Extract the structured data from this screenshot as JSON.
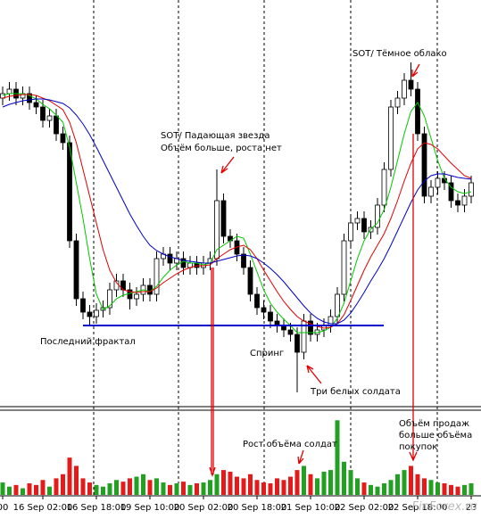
{
  "chart_data": {
    "type": "candlestick",
    "categories": [
      "00",
      null,
      null,
      null,
      null,
      null,
      "16 Sep 02:00",
      null,
      null,
      null,
      null,
      null,
      null,
      null,
      "16 Sep 18:00",
      null,
      null,
      null,
      null,
      null,
      null,
      null,
      "19 Sep 10:00",
      null,
      null,
      null,
      null,
      null,
      null,
      null,
      "20 Sep 02:00",
      null,
      null,
      null,
      null,
      null,
      null,
      null,
      "20 Sep 18:00",
      null,
      null,
      null,
      null,
      null,
      null,
      null,
      "21 Sep 10:00",
      null,
      null,
      null,
      null,
      null,
      null,
      null,
      "22 Sep 02:00",
      null,
      null,
      null,
      null,
      null,
      null,
      null,
      "22 Sep 18:00",
      null,
      null,
      null,
      null,
      null,
      null,
      null,
      "23"
    ],
    "open": [
      345,
      350,
      355,
      345,
      350,
      340,
      335,
      320,
      325,
      305,
      295,
      185,
      120,
      105,
      100,
      107,
      110,
      130,
      140,
      130,
      120,
      125,
      135,
      125,
      165,
      170,
      160,
      165,
      155,
      160,
      155,
      160,
      165,
      230,
      190,
      185,
      170,
      155,
      125,
      110,
      105,
      95,
      90,
      85,
      80,
      60,
      95,
      80,
      85,
      90,
      100,
      125,
      185,
      205,
      210,
      195,
      200,
      225,
      265,
      335,
      345,
      365,
      355,
      305,
      235,
      245,
      255,
      250,
      230,
      225,
      235
    ],
    "high": [
      358,
      363,
      363,
      358,
      358,
      348,
      343,
      333,
      333,
      313,
      303,
      193,
      128,
      113,
      115,
      118,
      138,
      148,
      148,
      138,
      133,
      143,
      143,
      173,
      178,
      178,
      173,
      173,
      168,
      168,
      168,
      173,
      265,
      238,
      198,
      193,
      178,
      163,
      133,
      118,
      113,
      103,
      98,
      93,
      88,
      103,
      103,
      93,
      98,
      108,
      133,
      193,
      213,
      218,
      218,
      208,
      233,
      273,
      343,
      353,
      373,
      385,
      363,
      313,
      253,
      263,
      263,
      258,
      238,
      243,
      258
    ],
    "low": [
      337,
      342,
      337,
      337,
      332,
      327,
      312,
      312,
      297,
      287,
      177,
      112,
      97,
      90,
      92,
      99,
      102,
      122,
      122,
      108,
      112,
      117,
      117,
      117,
      157,
      152,
      152,
      147,
      147,
      147,
      147,
      152,
      157,
      182,
      177,
      162,
      147,
      117,
      102,
      97,
      87,
      82,
      77,
      72,
      15,
      52,
      72,
      72,
      77,
      82,
      92,
      117,
      177,
      197,
      187,
      187,
      192,
      217,
      257,
      327,
      337,
      347,
      297,
      227,
      227,
      237,
      242,
      222,
      217,
      217,
      227
    ],
    "close": [
      350,
      355,
      345,
      350,
      340,
      335,
      320,
      325,
      305,
      295,
      185,
      120,
      105,
      100,
      107,
      110,
      130,
      140,
      130,
      120,
      125,
      135,
      125,
      165,
      170,
      160,
      165,
      155,
      160,
      155,
      160,
      165,
      230,
      190,
      185,
      170,
      155,
      125,
      110,
      105,
      95,
      90,
      85,
      80,
      60,
      95,
      80,
      85,
      90,
      100,
      125,
      185,
      205,
      210,
      195,
      200,
      225,
      265,
      335,
      345,
      365,
      355,
      305,
      235,
      245,
      255,
      250,
      230,
      225,
      235,
      250
    ],
    "ylim": [
      0,
      450
    ],
    "up_color": "#ffffff",
    "down_color": "#000000",
    "moving_averages": [
      {
        "color": "#00c800",
        "values": [
          348,
          350,
          350,
          350,
          348,
          344,
          338,
          333,
          326,
          318,
          290,
          250,
          210,
          165,
          125,
          108,
          112,
          120,
          124,
          126,
          128,
          130,
          128,
          134,
          144,
          152,
          158,
          162,
          160,
          160,
          158,
          160,
          175,
          180,
          185,
          190,
          188,
          170,
          150,
          130,
          115,
          105,
          97,
          90,
          82,
          82,
          82,
          82,
          84,
          88,
          98,
          115,
          140,
          165,
          185,
          198,
          205,
          220,
          245,
          275,
          305,
          330,
          340,
          325,
          300,
          275,
          255,
          245,
          240,
          238,
          240
        ]
      },
      {
        "color": "#e00000",
        "values": [
          345,
          347,
          348,
          349,
          349,
          348,
          345,
          342,
          337,
          332,
          318,
          295,
          265,
          235,
          205,
          175,
          152,
          138,
          130,
          128,
          127,
          128,
          128,
          132,
          138,
          143,
          148,
          152,
          155,
          157,
          157,
          158,
          165,
          170,
          175,
          178,
          180,
          175,
          165,
          152,
          140,
          128,
          117,
          108,
          100,
          95,
          92,
          89,
          87,
          88,
          92,
          102,
          118,
          135,
          152,
          167,
          180,
          193,
          210,
          230,
          252,
          272,
          288,
          295,
          293,
          288,
          280,
          272,
          265,
          258,
          255
        ]
      },
      {
        "color": "#0000c8",
        "values": [
          335,
          338,
          340,
          342,
          343,
          344,
          344,
          343,
          341,
          339,
          334,
          326,
          316,
          304,
          290,
          275,
          260,
          245,
          230,
          215,
          202,
          190,
          180,
          174,
          170,
          167,
          165,
          163,
          162,
          161,
          160,
          160,
          162,
          164,
          166,
          168,
          169,
          168,
          165,
          160,
          154,
          147,
          139,
          130,
          121,
          112,
          104,
          98,
          94,
          92,
          92,
          96,
          104,
          115,
          127,
          140,
          152,
          165,
          180,
          196,
          212,
          228,
          242,
          252,
          258,
          260,
          260,
          258,
          256,
          255,
          254
        ]
      }
    ],
    "support_level": 90,
    "support_color": "#0000cc",
    "volume": {
      "ylim": [
        0,
        100
      ],
      "up_color": "#22a022",
      "down_color": "#e41b1b",
      "values": [
        15,
        10,
        12,
        8,
        14,
        12,
        18,
        10,
        20,
        25,
        45,
        35,
        20,
        15,
        12,
        10,
        14,
        18,
        16,
        20,
        22,
        25,
        18,
        20,
        15,
        12,
        14,
        16,
        12,
        14,
        15,
        18,
        25,
        30,
        28,
        22,
        20,
        25,
        18,
        15,
        14,
        20,
        18,
        22,
        30,
        35,
        25,
        20,
        28,
        30,
        90,
        40,
        30,
        20,
        15,
        12,
        10,
        14,
        18,
        25,
        30,
        35,
        25,
        20,
        18,
        15,
        14,
        12,
        10,
        12,
        14
      ]
    },
    "annotations": {
      "dark_cloud": "SOT/ Тёмное облако",
      "shooting_star": [
        "SOT/ Падающая звезда",
        "Объём больше, роста нет"
      ],
      "last_fractal": "Последний фрактал",
      "spring": "Спринг",
      "soldiers": "Три белых солдата",
      "soldiers_volume": "Рост объёма солдат",
      "sell_volume": [
        "Объём продаж",
        "больше объёма",
        "покупок"
      ]
    },
    "watermark": "FinForex.ru"
  }
}
